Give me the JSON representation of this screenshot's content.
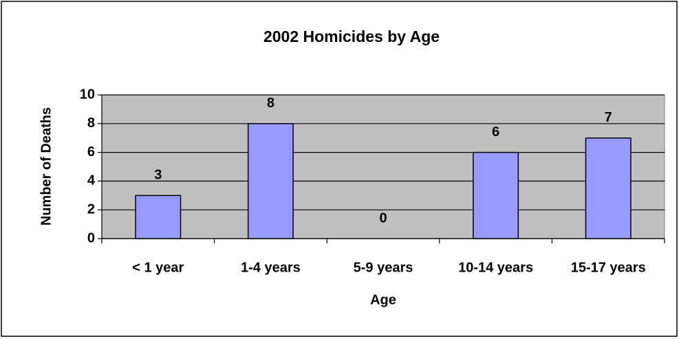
{
  "chart_data": {
    "type": "bar",
    "title": "2002 Homicides by Age",
    "x_label": "Age",
    "y_label": "Number of Deaths",
    "categories": [
      "< 1 year",
      "1-4 years",
      "5-9 years",
      "10-14 years",
      "15-17 years"
    ],
    "values": [
      3,
      8,
      0,
      6,
      7
    ],
    "color": "#9999ff",
    "ylim": [
      0,
      10
    ],
    "yticks": [
      0,
      2,
      4,
      6,
      8,
      10
    ],
    "grid": true
  }
}
